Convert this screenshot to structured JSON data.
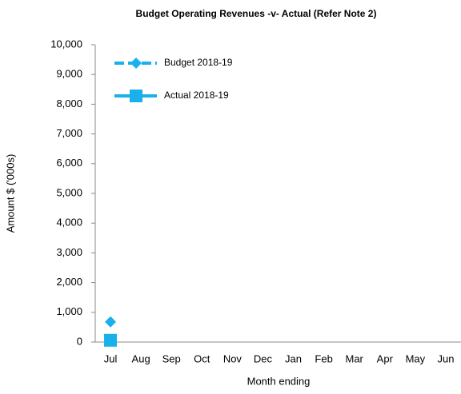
{
  "chart_data": {
    "type": "line",
    "title": "Budget Operating Revenues -v- Actual (Refer Note 2)",
    "x_label": "Month ending",
    "y_label": "Amount $ ('000s)",
    "categories": [
      "Jul",
      "Aug",
      "Sep",
      "Oct",
      "Nov",
      "Dec",
      "Jan",
      "Feb",
      "Mar",
      "Apr",
      "May",
      "Jun"
    ],
    "series": [
      {
        "name": "Budget 2018-19",
        "color": "#1ab0ec",
        "marker": "diamond",
        "line_style": "dashed",
        "values": [
          680,
          null,
          null,
          null,
          null,
          null,
          null,
          null,
          null,
          null,
          null,
          null
        ]
      },
      {
        "name": "Actual 2018-19",
        "color": "#1ab0ec",
        "marker": "square",
        "line_style": "solid",
        "values": [
          60,
          null,
          null,
          null,
          null,
          null,
          null,
          null,
          null,
          null,
          null,
          null
        ]
      }
    ],
    "ylim": [
      0,
      10000
    ],
    "yticks": [
      0,
      {
        "value": 1000,
        "label": "1,000"
      },
      {
        "value": 2000,
        "label": "2,000"
      },
      {
        "value": 3000,
        "label": "3,000"
      },
      {
        "value": 4000,
        "label": "4,000"
      },
      {
        "value": 5000,
        "label": "5,000"
      },
      {
        "value": 6000,
        "label": "6,000"
      },
      {
        "value": 7000,
        "label": "7,000"
      },
      {
        "value": 8000,
        "label": "8,000"
      },
      {
        "value": 9000,
        "label": "9,000"
      },
      {
        "value": 10000,
        "label": "10,000"
      }
    ],
    "legend": "upper left"
  }
}
